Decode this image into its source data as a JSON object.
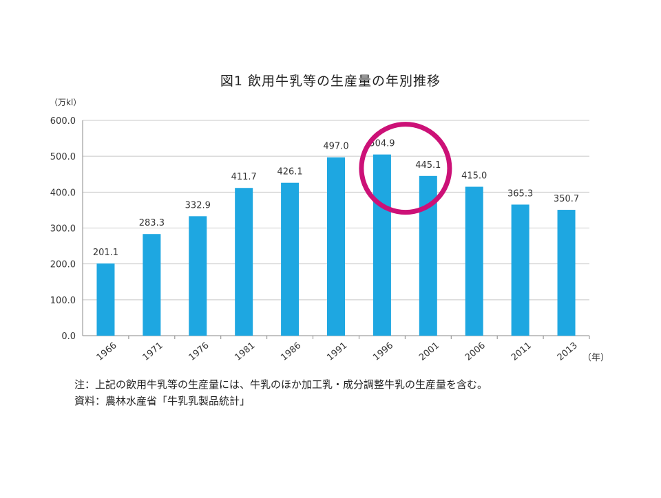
{
  "chart_data": {
    "type": "bar",
    "title": "図1  飲用牛乳等の生産量の年別推移",
    "ylabel": "（万kl）",
    "xlabel": "（年）",
    "ylim": [
      0,
      600
    ],
    "yticks": [
      "0.0",
      "100.0",
      "200.0",
      "300.0",
      "400.0",
      "500.0",
      "600.0"
    ],
    "categories": [
      "1966",
      "1971",
      "1976",
      "1981",
      "1986",
      "1991",
      "1996",
      "2001",
      "2006",
      "2011",
      "2013"
    ],
    "values": [
      201.1,
      283.3,
      332.9,
      411.7,
      426.1,
      497.0,
      504.9,
      445.1,
      415.0,
      365.3,
      350.7
    ],
    "value_labels": [
      "201.1",
      "283.3",
      "332.9",
      "411.7",
      "426.1",
      "497.0",
      "504.9",
      "445.1",
      "415.0",
      "365.3",
      "350.7"
    ],
    "bar_color": "#1ea7e1",
    "highlight_index": 6,
    "highlight_color": "#cc1177",
    "grid": true
  },
  "notes": {
    "note": "注：上記の飲用牛乳等の生産量には、牛乳のほか加工乳・成分調整牛乳の生産量を含む。",
    "source": "資料：農林水産省「牛乳乳製品統計」"
  }
}
